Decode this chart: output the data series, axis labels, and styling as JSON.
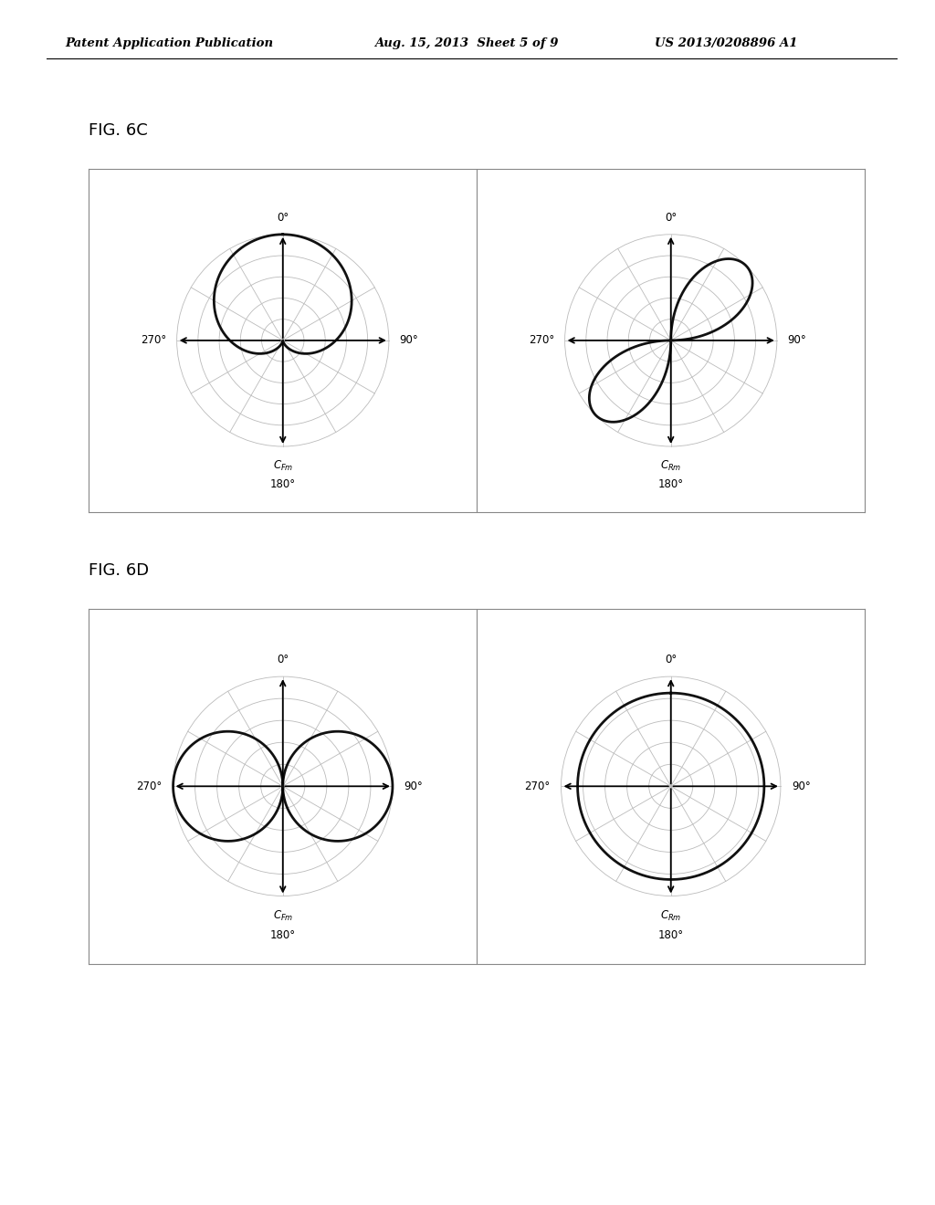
{
  "header_left": "Patent Application Publication",
  "header_mid": "Aug. 15, 2013  Sheet 5 of 9",
  "header_right": "US 2013/0208896 A1",
  "fig6c_label": "FIG. 6C",
  "fig6d_label": "FIG. 6D",
  "label_0": "0°",
  "label_90": "90°",
  "label_180": "180°",
  "label_270": "270°",
  "background_color": "#ffffff",
  "line_color": "#000000",
  "grid_color": "#bbbbbb",
  "thick_line_color": "#111111",
  "n_circles": 5,
  "n_spokes": 12,
  "box_color": "#888888",
  "header_line_color": "#000000"
}
